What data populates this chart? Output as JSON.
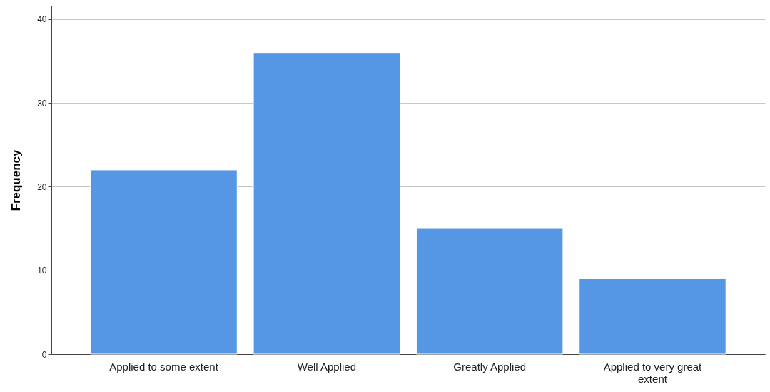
{
  "chart_data": {
    "type": "bar",
    "ylabel": "Frequency",
    "categories": [
      "Applied to some extent",
      "Well Applied",
      "Greatly Applied",
      "Applied to very great extent"
    ],
    "values": [
      22,
      36,
      15,
      9
    ],
    "color": "#5596e5",
    "ylim": [
      0,
      41.6
    ],
    "yticks": [
      0,
      10,
      20,
      30,
      40
    ],
    "grid": "y"
  }
}
